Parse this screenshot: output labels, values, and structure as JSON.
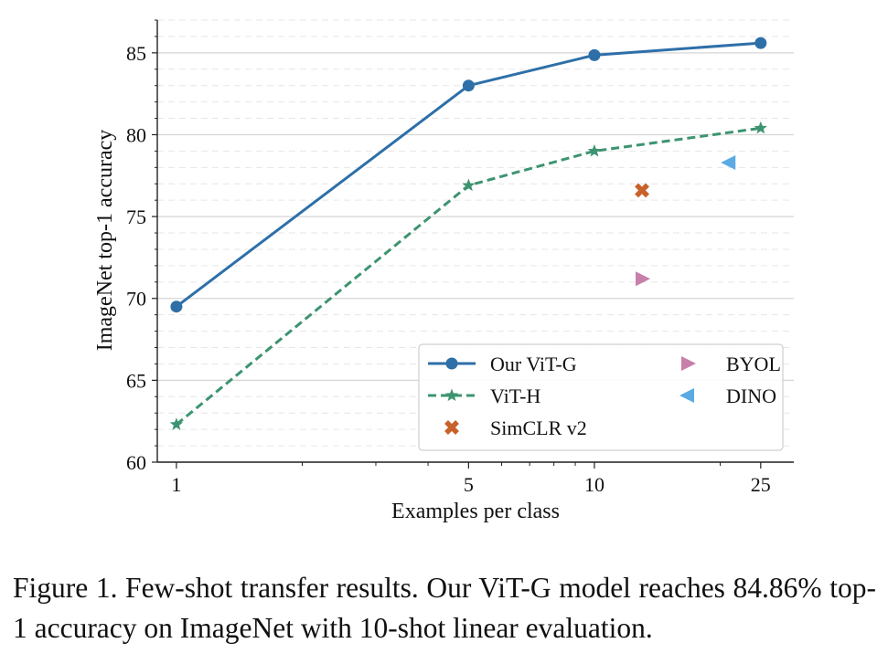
{
  "chart_data": {
    "type": "line",
    "xscale": "log",
    "x_ticks": [
      1,
      5,
      10,
      25
    ],
    "x_tick_labels": [
      "1",
      "5",
      "10",
      "25"
    ],
    "xlim": [
      0.9,
      30
    ],
    "ylim": [
      60,
      87
    ],
    "y_ticks": [
      60,
      65,
      70,
      75,
      80,
      85
    ],
    "y_tick_labels": [
      "60",
      "65",
      "70",
      "75",
      "80",
      "85"
    ],
    "xlabel": "Examples per class",
    "ylabel": "ImageNet top-1 accuracy",
    "grid": "major solid + minor dashed (y)",
    "legend_position": "lower-right",
    "series": [
      {
        "name": "Our ViT-G",
        "kind": "line",
        "style": "solid",
        "marker": "circle",
        "color": "#2e6fa8",
        "x": [
          1,
          5,
          10,
          25
        ],
        "y": [
          69.5,
          83.0,
          84.86,
          85.6
        ]
      },
      {
        "name": "ViT-H",
        "kind": "line",
        "style": "dashed",
        "marker": "star",
        "color": "#3d9470",
        "x": [
          1,
          5,
          10,
          25
        ],
        "y": [
          62.3,
          76.9,
          79.0,
          80.4
        ]
      },
      {
        "name": "SimCLR v2",
        "kind": "point",
        "marker": "x",
        "color": "#c8622a",
        "x": [
          13
        ],
        "y": [
          76.6
        ]
      },
      {
        "name": "BYOL",
        "kind": "point",
        "marker": "triangle-right",
        "color": "#c77fab",
        "x": [
          13
        ],
        "y": [
          71.2
        ]
      },
      {
        "name": "DINO",
        "kind": "point",
        "marker": "triangle-left",
        "color": "#5aaae3",
        "x": [
          21
        ],
        "y": [
          78.3
        ]
      }
    ]
  },
  "caption": "Figure 1. Few-shot transfer results. Our ViT-G model reaches 84.86% top-1 accuracy on ImageNet with 10-shot linear evaluation."
}
